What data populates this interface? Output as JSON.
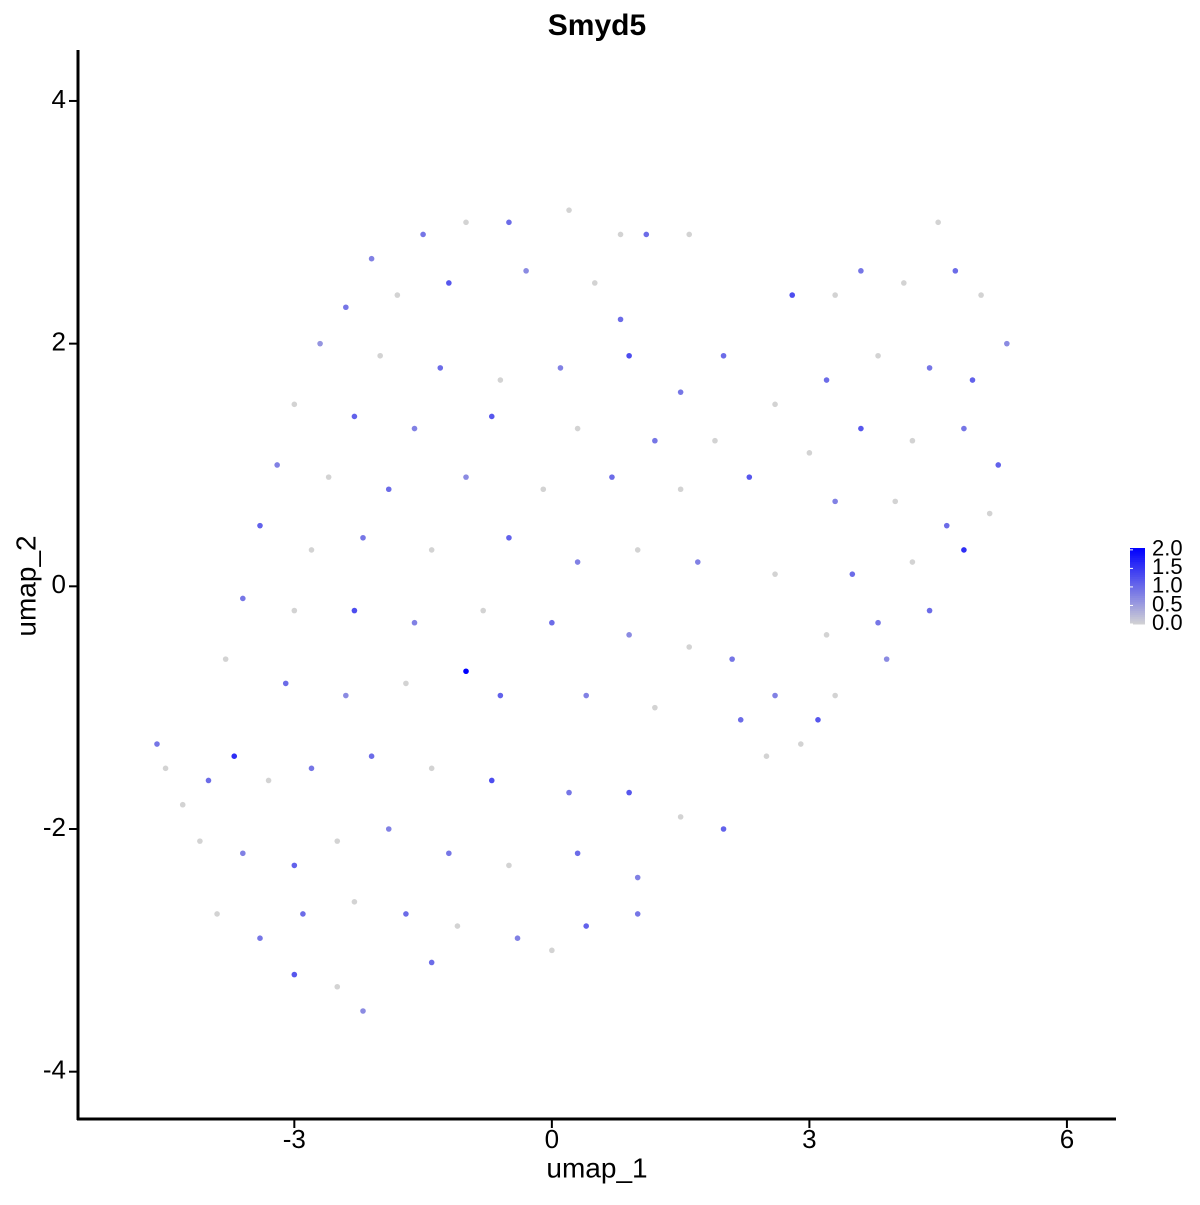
{
  "chart_data": {
    "type": "scatter",
    "title": "Smyd5",
    "x_label": "umap_1",
    "y_label": "umap_2",
    "xlim": [
      -5.52,
      6.56
    ],
    "ylim": [
      -4.39,
      4.42
    ],
    "xticks": [
      -3,
      0,
      3,
      6
    ],
    "yticks": [
      -4,
      -2,
      0,
      2,
      4
    ],
    "color_low": "#d3d3d3",
    "color_high": "#0000ff",
    "clim": [
      0,
      2.05
    ],
    "colorbar_ticks": [
      {
        "value": 0,
        "label": "0.0"
      },
      {
        "value": 0.5,
        "label": "0.5"
      },
      {
        "value": 1,
        "label": "1.0"
      },
      {
        "value": 1.5,
        "label": "1.5"
      },
      {
        "value": 2,
        "label": "2.0"
      }
    ],
    "x": [
      -2.1,
      -1.5,
      -1.0,
      -0.5,
      0.2,
      0.8,
      1.1,
      1.6,
      -2.4,
      -1.8,
      -1.2,
      -0.3,
      0.5,
      0.8,
      -2.7,
      -2.0,
      -1.3,
      -0.6,
      0.1,
      0.9,
      1.5,
      -3.0,
      -2.3,
      -1.6,
      -0.7,
      0.3,
      1.2,
      1.9,
      -3.2,
      -2.6,
      -1.9,
      -1.0,
      -0.1,
      0.7,
      1.5,
      2.3,
      -3.4,
      -2.8,
      -2.2,
      -1.4,
      -0.5,
      0.3,
      1.0,
      1.7,
      2.6,
      -3.6,
      -3.0,
      -2.3,
      -1.6,
      -0.8,
      0.0,
      0.9,
      1.6,
      2.1,
      -1.0,
      -3.8,
      -3.1,
      -2.4,
      -1.7,
      -0.6,
      0.4,
      1.2,
      2.2,
      2.9,
      -4.6,
      -4.5,
      -4.3,
      -4.0,
      -3.7,
      -3.3,
      -2.8,
      -2.1,
      -1.4,
      -0.7,
      0.2,
      0.9,
      1.5,
      2.0,
      -4.1,
      -3.6,
      -3.0,
      -2.5,
      -1.9,
      -1.2,
      -0.5,
      0.3,
      1.0,
      -3.9,
      -3.4,
      -2.9,
      -2.3,
      -1.7,
      -1.1,
      -0.4,
      0.4,
      1.0,
      -3.0,
      -2.5,
      -2.2,
      -1.4,
      0.0,
      2.0,
      2.8,
      3.3,
      3.6,
      4.1,
      4.5,
      4.7,
      5.0,
      5.3,
      2.6,
      3.2,
      3.8,
      4.4,
      4.9,
      3.0,
      3.6,
      4.2,
      4.8,
      5.2,
      3.3,
      4.0,
      4.6,
      5.1,
      3.5,
      4.2,
      4.8,
      3.2,
      3.8,
      4.4,
      2.6,
      3.3,
      3.9,
      3.1,
      2.5
    ],
    "values": [
      2.7,
      2.9,
      3.0,
      3.0,
      3.1,
      2.9,
      2.9,
      2.9,
      2.3,
      2.4,
      2.5,
      2.6,
      2.5,
      2.2,
      2.0,
      1.9,
      1.8,
      1.7,
      1.8,
      1.9,
      1.6,
      1.5,
      1.4,
      1.3,
      1.4,
      1.3,
      1.2,
      1.2,
      1.0,
      0.9,
      0.8,
      0.9,
      0.8,
      0.9,
      0.8,
      0.9,
      0.5,
      0.3,
      0.4,
      0.3,
      0.4,
      0.2,
      0.3,
      0.2,
      0.1,
      -0.1,
      -0.2,
      -0.2,
      -0.3,
      -0.2,
      -0.3,
      -0.4,
      -0.5,
      -0.6,
      -0.7,
      -0.6,
      -0.8,
      -0.9,
      -0.8,
      -0.9,
      -0.9,
      -1.0,
      -1.1,
      -1.3,
      -1.3,
      -1.5,
      -1.8,
      -1.6,
      -1.4,
      -1.6,
      -1.5,
      -1.4,
      -1.5,
      -1.6,
      -1.7,
      -1.7,
      -1.9,
      -2.0,
      -2.1,
      -2.2,
      -2.3,
      -2.1,
      -2.0,
      -2.2,
      -2.3,
      -2.2,
      -2.4,
      -2.7,
      -2.9,
      -2.7,
      -2.6,
      -2.7,
      -2.8,
      -2.9,
      -2.8,
      -2.7,
      -3.2,
      -3.3,
      -3.5,
      -3.1,
      -3.0,
      1.9,
      2.4,
      2.4,
      2.6,
      2.5,
      3.0,
      2.6,
      2.4,
      2.0,
      1.5,
      1.7,
      1.9,
      1.8,
      1.7,
      1.1,
      1.3,
      1.2,
      1.3,
      1.0,
      0.7,
      0.7,
      0.5,
      0.6,
      0.1,
      0.2,
      0.3,
      -0.4,
      -0.3,
      -0.2,
      -0.9,
      -0.9,
      -0.6,
      -1.1,
      -1.4
    ],
    "expression": [
      0.8,
      0.9,
      0,
      1.0,
      0,
      0,
      1.0,
      0,
      0.9,
      0,
      1.2,
      0.7,
      0,
      1.0,
      0.6,
      0,
      1.0,
      0,
      0.8,
      1.3,
      0.9,
      0,
      1.1,
      0.8,
      1.2,
      0,
      0.9,
      0,
      0.8,
      0,
      1.0,
      0.7,
      0,
      1.0,
      0,
      1.2,
      1.1,
      0,
      0.9,
      0,
      1.1,
      0.8,
      0,
      0.8,
      0,
      0.9,
      0,
      1.3,
      0.8,
      0,
      1.0,
      0.7,
      0,
      0.9,
      2.05,
      0,
      1.0,
      0.7,
      0,
      1.1,
      0.8,
      0,
      1.0,
      0,
      0.9,
      0,
      0,
      1.0,
      1.6,
      0,
      0.9,
      1.0,
      0,
      1.3,
      0.9,
      1.2,
      0,
      1.1,
      0,
      0.8,
      1.1,
      0,
      0.8,
      0.9,
      0,
      1.0,
      0.8,
      0,
      0.9,
      1.0,
      0,
      1.0,
      0,
      0.8,
      1.1,
      0.9,
      1.2,
      0,
      0.7,
      1.0,
      0,
      1.0,
      1.3,
      0,
      0.9,
      0,
      0,
      1.0,
      0,
      0.7,
      0,
      1.0,
      0,
      0.9,
      1.1,
      0,
      1.2,
      0,
      0.9,
      1.1,
      0.8,
      0,
      1.0,
      0,
      1.0,
      0,
      1.6,
      0,
      0.9,
      1.0,
      0.8,
      0,
      0.7,
      1.2,
      0
    ]
  }
}
